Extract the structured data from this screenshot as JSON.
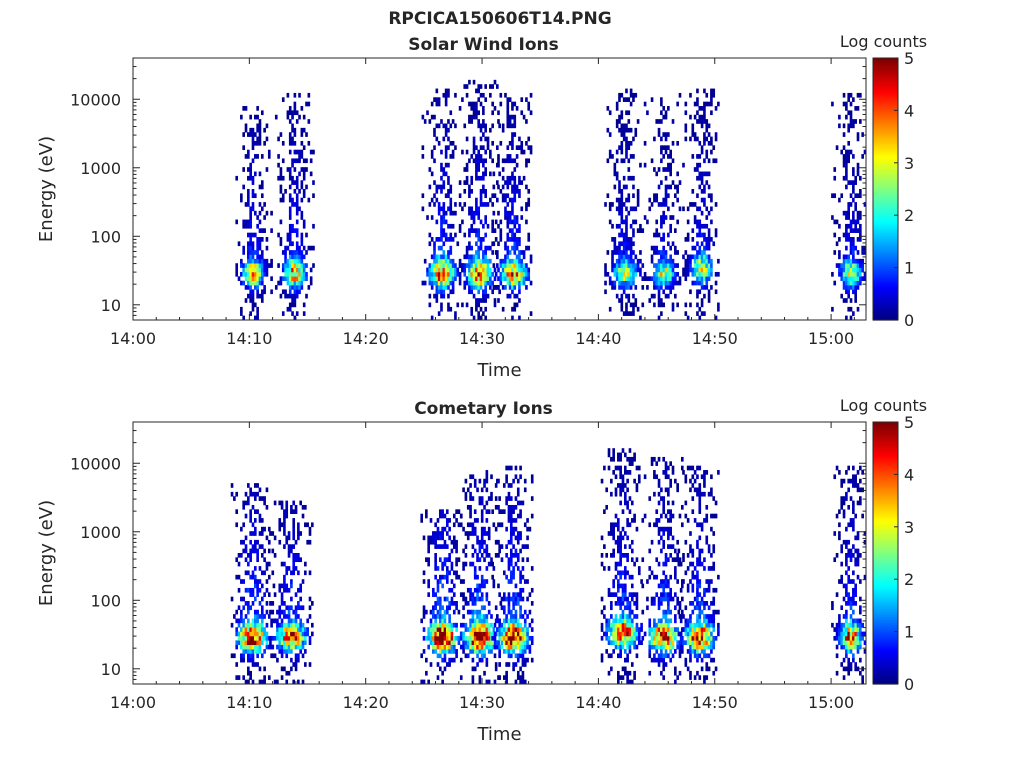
{
  "figure_title": "RPCICA150606T14.PNG",
  "chart_data": [
    {
      "type": "heatmap",
      "title": "Solar Wind Ions",
      "xlabel": "Time",
      "ylabel": "Energy (eV)",
      "x_ticks": [
        "14:00",
        "14:10",
        "14:20",
        "14:30",
        "14:40",
        "14:50",
        "15:00"
      ],
      "x_range_minutes": [
        0,
        63
      ],
      "y_scale": "log",
      "y_ticks": [
        10,
        100,
        1000,
        10000
      ],
      "y_range": [
        6,
        40000
      ],
      "colorbar": {
        "label": "Log counts",
        "range": [
          0,
          5
        ],
        "ticks": [
          0,
          1,
          2,
          3,
          4,
          5
        ]
      },
      "colormap": "jet",
      "bursts": [
        {
          "t": 10.2,
          "w": 0.6,
          "e_top": 8000,
          "e_core": 30,
          "peak": 2.4
        },
        {
          "t": 13.8,
          "w": 0.6,
          "e_top": 12000,
          "e_core": 30,
          "peak": 2.6
        },
        {
          "t": 26.5,
          "w": 0.7,
          "e_top": 15000,
          "e_core": 30,
          "peak": 3.0
        },
        {
          "t": 29.7,
          "w": 0.7,
          "e_top": 18000,
          "e_core": 30,
          "peak": 3.0
        },
        {
          "t": 32.6,
          "w": 0.7,
          "e_top": 12000,
          "e_core": 30,
          "peak": 2.8
        },
        {
          "t": 42.2,
          "w": 0.7,
          "e_top": 15000,
          "e_core": 30,
          "peak": 2.0
        },
        {
          "t": 45.5,
          "w": 0.6,
          "e_top": 12000,
          "e_core": 30,
          "peak": 2.0
        },
        {
          "t": 48.8,
          "w": 0.6,
          "e_top": 14000,
          "e_core": 35,
          "peak": 2.2
        },
        {
          "t": 61.6,
          "w": 0.6,
          "e_top": 12000,
          "e_core": 30,
          "peak": 2.0
        }
      ]
    },
    {
      "type": "heatmap",
      "title": "Cometary Ions",
      "xlabel": "Time",
      "ylabel": "Energy (eV)",
      "x_ticks": [
        "14:00",
        "14:10",
        "14:20",
        "14:30",
        "14:40",
        "14:50",
        "15:00"
      ],
      "x_range_minutes": [
        0,
        63
      ],
      "y_scale": "log",
      "y_ticks": [
        10,
        100,
        1000,
        10000
      ],
      "y_range": [
        6,
        40000
      ],
      "colorbar": {
        "label": "Log counts",
        "range": [
          0,
          5
        ],
        "ticks": [
          0,
          1,
          2,
          3,
          4,
          5
        ]
      },
      "colormap": "jet",
      "bursts": [
        {
          "t": 10.2,
          "w": 0.8,
          "e_top": 5000,
          "e_core": 30,
          "peak": 3.5
        },
        {
          "t": 13.5,
          "w": 0.8,
          "e_top": 3000,
          "e_core": 30,
          "peak": 3.0
        },
        {
          "t": 26.5,
          "w": 0.8,
          "e_top": 2000,
          "e_core": 30,
          "peak": 4.0
        },
        {
          "t": 29.7,
          "w": 0.8,
          "e_top": 8000,
          "e_core": 30,
          "peak": 4.0
        },
        {
          "t": 32.6,
          "w": 0.8,
          "e_top": 9000,
          "e_core": 30,
          "peak": 3.8
        },
        {
          "t": 42.0,
          "w": 0.8,
          "e_top": 20000,
          "e_core": 35,
          "peak": 3.3
        },
        {
          "t": 45.5,
          "w": 0.8,
          "e_top": 12000,
          "e_core": 30,
          "peak": 3.3
        },
        {
          "t": 48.6,
          "w": 0.8,
          "e_top": 9000,
          "e_core": 30,
          "peak": 3.3
        },
        {
          "t": 61.6,
          "w": 0.6,
          "e_top": 12000,
          "e_core": 30,
          "peak": 3.0
        }
      ]
    }
  ]
}
